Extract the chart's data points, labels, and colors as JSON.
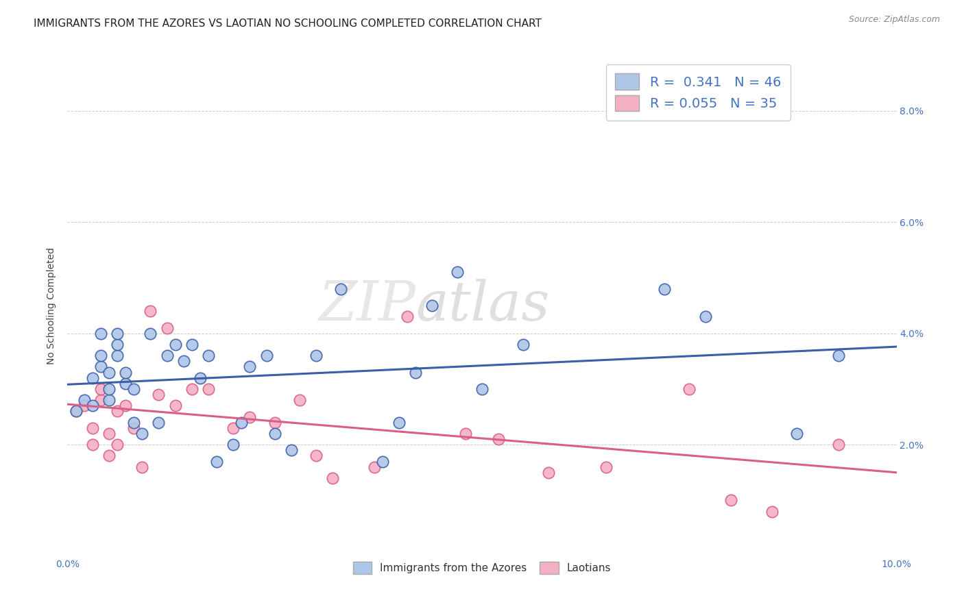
{
  "title": "IMMIGRANTS FROM THE AZORES VS LAOTIAN NO SCHOOLING COMPLETED CORRELATION CHART",
  "source": "Source: ZipAtlas.com",
  "ylabel": "No Schooling Completed",
  "xlim": [
    0.0,
    0.1
  ],
  "ylim": [
    0.0,
    0.09
  ],
  "yticks": [
    0.0,
    0.02,
    0.04,
    0.06,
    0.08
  ],
  "ytick_labels_right": [
    "",
    "2.0%",
    "4.0%",
    "6.0%",
    "8.0%"
  ],
  "xticks": [
    0.0,
    0.02,
    0.04,
    0.06,
    0.08,
    0.1
  ],
  "watermark": "ZIPatlas",
  "legend_R_azores": "0.341",
  "legend_N_azores": "46",
  "legend_R_laotian": "0.055",
  "legend_N_laotian": "35",
  "azores_color": "#aec6e8",
  "laotian_color": "#f4afc3",
  "azores_line_color": "#3a5fa8",
  "laotian_line_color": "#d95f86",
  "background_color": "#ffffff",
  "azores_x": [
    0.001,
    0.002,
    0.003,
    0.003,
    0.004,
    0.004,
    0.004,
    0.005,
    0.005,
    0.005,
    0.006,
    0.006,
    0.006,
    0.007,
    0.007,
    0.008,
    0.008,
    0.009,
    0.01,
    0.011,
    0.012,
    0.013,
    0.014,
    0.015,
    0.016,
    0.017,
    0.018,
    0.02,
    0.021,
    0.022,
    0.024,
    0.025,
    0.027,
    0.03,
    0.033,
    0.038,
    0.04,
    0.042,
    0.044,
    0.047,
    0.05,
    0.055,
    0.072,
    0.077,
    0.088,
    0.093
  ],
  "azores_y": [
    0.026,
    0.028,
    0.032,
    0.027,
    0.034,
    0.036,
    0.04,
    0.028,
    0.03,
    0.033,
    0.036,
    0.038,
    0.04,
    0.031,
    0.033,
    0.03,
    0.024,
    0.022,
    0.04,
    0.024,
    0.036,
    0.038,
    0.035,
    0.038,
    0.032,
    0.036,
    0.017,
    0.02,
    0.024,
    0.034,
    0.036,
    0.022,
    0.019,
    0.036,
    0.048,
    0.017,
    0.024,
    0.033,
    0.045,
    0.051,
    0.03,
    0.038,
    0.048,
    0.043,
    0.022,
    0.036
  ],
  "laotian_x": [
    0.001,
    0.002,
    0.003,
    0.003,
    0.004,
    0.004,
    0.005,
    0.005,
    0.006,
    0.006,
    0.007,
    0.008,
    0.009,
    0.01,
    0.011,
    0.012,
    0.013,
    0.015,
    0.017,
    0.02,
    0.022,
    0.025,
    0.028,
    0.03,
    0.032,
    0.037,
    0.041,
    0.048,
    0.052,
    0.058,
    0.065,
    0.075,
    0.08,
    0.085,
    0.093
  ],
  "laotian_y": [
    0.026,
    0.027,
    0.023,
    0.02,
    0.028,
    0.03,
    0.022,
    0.018,
    0.02,
    0.026,
    0.027,
    0.023,
    0.016,
    0.044,
    0.029,
    0.041,
    0.027,
    0.03,
    0.03,
    0.023,
    0.025,
    0.024,
    0.028,
    0.018,
    0.014,
    0.016,
    0.043,
    0.022,
    0.021,
    0.015,
    0.016,
    0.03,
    0.01,
    0.008,
    0.02
  ],
  "title_fontsize": 11,
  "axis_fontsize": 10,
  "tick_fontsize": 10,
  "legend_fontsize": 14
}
